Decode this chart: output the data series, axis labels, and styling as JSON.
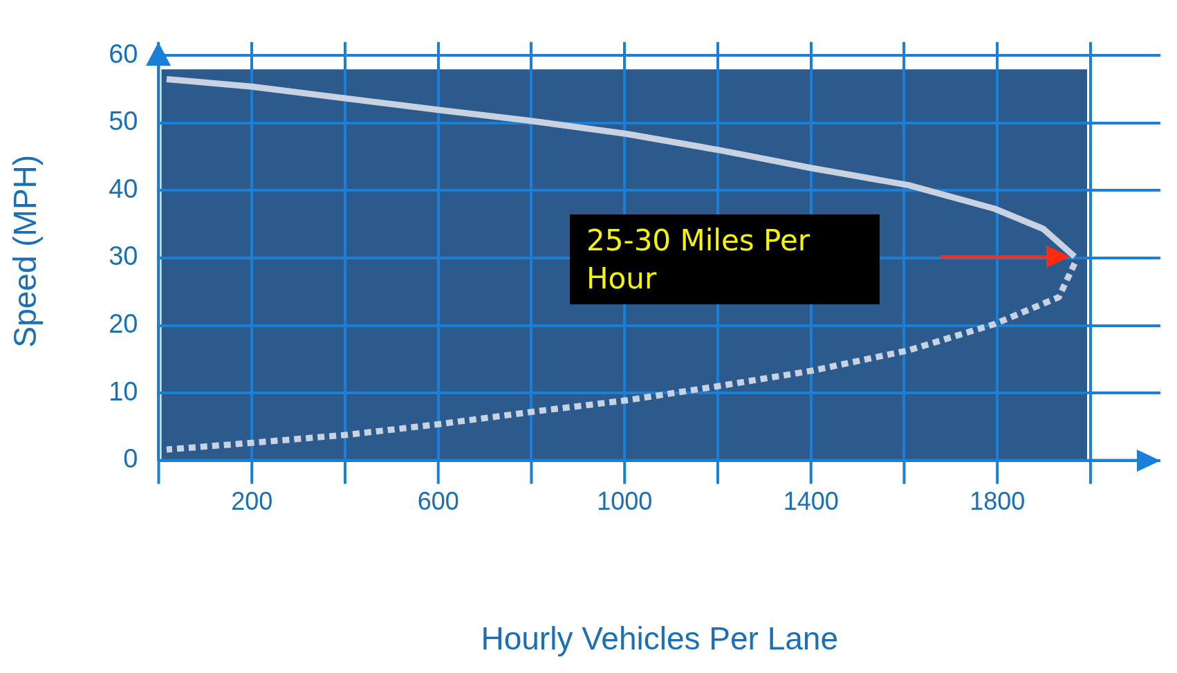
{
  "chart_data": {
    "type": "line",
    "xlabel": "Hourly Vehicles Per Lane",
    "ylabel": "Speed (MPH)",
    "xlim": [
      0,
      2150
    ],
    "ylim": [
      0,
      62
    ],
    "xticks": [
      {
        "value": 0,
        "label": null
      },
      200,
      {
        "value": 400,
        "label": null
      },
      600,
      {
        "value": 800,
        "label": null
      },
      1000,
      {
        "value": 1200,
        "label": null
      },
      1400,
      {
        "value": 1600,
        "label": null
      },
      1800,
      {
        "value": 2000,
        "label": null
      }
    ],
    "yticks": [
      0,
      10,
      20,
      30,
      40,
      50,
      60
    ],
    "grid": true,
    "series": [
      {
        "color": "#c8d2e0",
        "line_style": "solid",
        "x": [
          17,
          200,
          605,
          813,
          1004,
          1210,
          1403,
          1609,
          1794,
          1899,
          1966
        ],
        "values": [
          56.5,
          55.4,
          51.9,
          50.2,
          48.4,
          45.9,
          43.3,
          40.8,
          37.3,
          34.3,
          30.2
        ]
      },
      {
        "color": "#c8d2e0",
        "line_style": "dashed",
        "x": [
          1966,
          1932,
          1794,
          1609,
          1403,
          1210,
          1004,
          813,
          605,
          406,
          200,
          17
        ],
        "values": [
          29.2,
          24.2,
          20.2,
          16.3,
          13.3,
          11.1,
          8.9,
          7.3,
          5.4,
          3.8,
          2.6,
          1.6
        ]
      }
    ],
    "annotations": [
      "25-30 Miles Per Hour"
    ]
  }
}
